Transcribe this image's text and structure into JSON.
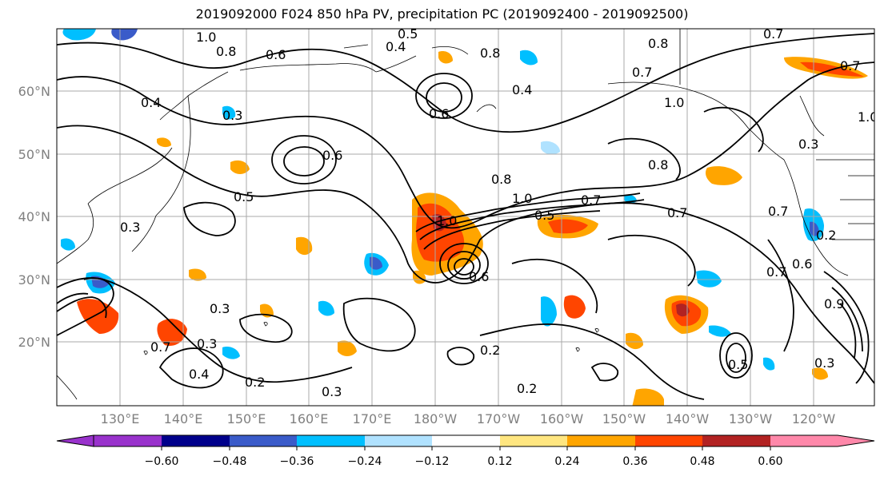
{
  "title": "2019092000 F024 850 hPa PV, precipitation PC (2019092400 - 2019092500)",
  "lon_labels": [
    "130°E",
    "140°E",
    "150°E",
    "160°E",
    "170°E",
    "180°W",
    "170°W",
    "160°W",
    "150°W",
    "140°W",
    "130°W",
    "120°W"
  ],
  "lat_labels": [
    "60°N",
    "50°N",
    "40°N",
    "30°N",
    "20°N"
  ],
  "colorbar": {
    "tick_labels": [
      "−0.60",
      "−0.48",
      "−0.36",
      "−0.24",
      "−0.12",
      "0.12",
      "0.24",
      "0.36",
      "0.48",
      "0.60"
    ],
    "colors": [
      "#9932cc",
      "#00008b",
      "#3a5bc9",
      "#00bfff",
      "#b0e2ff",
      "#ffffff",
      "#ffe680",
      "#ffa500",
      "#ff4500",
      "#b22222",
      "#ff88aa"
    ]
  },
  "contour_labels": [
    "1.0",
    "0.8",
    "0.6",
    "0.5",
    "0.4",
    "0.3",
    "0.2",
    "0.7",
    "0.9"
  ]
}
